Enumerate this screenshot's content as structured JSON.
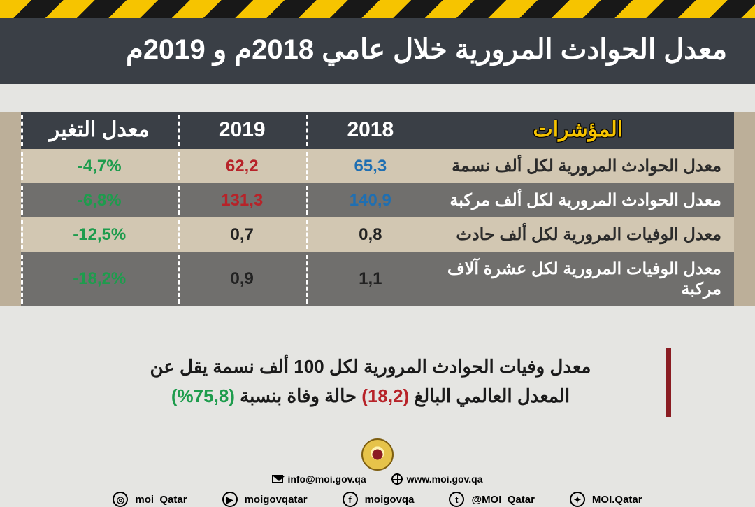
{
  "title": "معدل الحوادث المرورية خلال عامي 2018م و 2019م",
  "colors": {
    "hazard_yellow": "#f6c400",
    "hazard_black": "#181818",
    "title_bg": "#3a3f46",
    "page_bg": "#e5e5e2",
    "table_bg": "#bcaf99",
    "row_light": "#d2c7b2",
    "row_dark": "#706f6d",
    "blue": "#1f6fb2",
    "red": "#b72329",
    "green": "#1e9c4d",
    "note_border": "#8a1c22",
    "indicators_header": "#f6c400"
  },
  "table": {
    "type": "table",
    "headers": {
      "indicators": "المؤشرات",
      "y2018": "2018",
      "y2019": "2019",
      "change": "معدل التغير"
    },
    "col_widths_pct": {
      "indicators": 42,
      "y2018": 18,
      "y2019": 18,
      "change": 22
    },
    "header_fontsize": 30,
    "cell_fontsize": 24,
    "rows": [
      {
        "indicator": "معدل الحوادث المرورية لكل ألف نسمة",
        "y2018": "65,3",
        "y2018_color": "blue",
        "y2019": "62,2",
        "y2019_color": "red",
        "change": "-4,7%",
        "change_color": "green",
        "shade": "light"
      },
      {
        "indicator": "معدل الحوادث المرورية لكل ألف مركبة",
        "y2018": "140,9",
        "y2018_color": "blue",
        "y2019": "131,3",
        "y2019_color": "red",
        "change": "-6,8%",
        "change_color": "green",
        "shade": "dark"
      },
      {
        "indicator": "معدل الوفيات المرورية لكل ألف حادث",
        "y2018": "0,8",
        "y2018_color": "dark",
        "y2019": "0,7",
        "y2019_color": "dark",
        "change": "-12,5%",
        "change_color": "green",
        "shade": "light"
      },
      {
        "indicator": "معدل الوفيات المرورية لكل عشرة آلاف مركبة",
        "y2018": "1,1",
        "y2018_color": "dark",
        "y2019": "0,9",
        "y2019_color": "dark",
        "change": "-18,2%",
        "change_color": "green",
        "shade": "dark"
      }
    ]
  },
  "note": {
    "line1_a": "معدل وفيات الحوادث المرورية لكل 100 ألف نسمة يقل عن",
    "line2_a": "المعدل العالمي البالغ ",
    "rate_value": "(18,2)",
    "line2_b": " حالة وفاة بنسبة ",
    "pct_value": "(75,8%)",
    "fontsize": 26
  },
  "footer": {
    "email": "info@moi.gov.qa",
    "website": "www.moi.gov.qa",
    "socials": [
      {
        "icon": "instagram",
        "glyph": "◎",
        "handle": "moi_Qatar"
      },
      {
        "icon": "youtube",
        "glyph": "▶",
        "handle": "moigovqatar"
      },
      {
        "icon": "facebook",
        "glyph": "f",
        "handle": "moigovqa"
      },
      {
        "icon": "twitter",
        "glyph": "t",
        "handle": "@MOI_Qatar"
      },
      {
        "icon": "snapchat",
        "glyph": "✦",
        "handle": "MOI.Qatar"
      }
    ]
  }
}
